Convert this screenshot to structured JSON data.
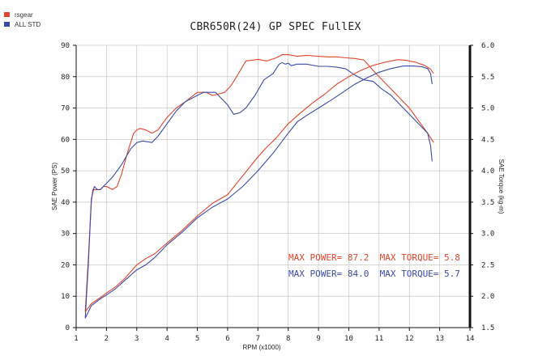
{
  "chart_data": {
    "type": "line",
    "title": "CBR650R(24) GP SPEC FullEX",
    "xlabel": "RPM (x1000)",
    "ylabel_left": "SAE Power (PS)",
    "ylabel_right": "SAE Torque (kg-m)",
    "xlim": [
      1,
      14
    ],
    "ylim_left": [
      0,
      90
    ],
    "ylim_right": [
      1.5,
      6.0
    ],
    "x_ticks": [
      "1",
      "2",
      "3",
      "4",
      "5",
      "6",
      "7",
      "8",
      "9",
      "10",
      "11",
      "12",
      "13",
      "14"
    ],
    "y_ticks_left": [
      "0",
      "10",
      "20",
      "30",
      "40",
      "50",
      "60",
      "70",
      "80",
      "90"
    ],
    "y_ticks_right": [
      "1.5",
      "2.0",
      "2.5",
      "3.0",
      "3.5",
      "4.0",
      "4.5",
      "5.0",
      "5.5",
      "6.0"
    ],
    "grid": true,
    "legend": [
      {
        "name": "rsgear",
        "color": "#e0442a"
      },
      {
        "name": "ALL STD",
        "color": "#3a4aa8"
      }
    ],
    "series": [
      {
        "name": "rsgear",
        "kind": "power",
        "axis": "left",
        "color": "#e0442a",
        "x": [
          1.3,
          1.4,
          1.5,
          1.55,
          1.6,
          1.7,
          1.8,
          1.9,
          2.0,
          2.1,
          2.2,
          2.35,
          2.5,
          2.7,
          2.9,
          3.0,
          3.1,
          3.3,
          3.5,
          3.7,
          4.0,
          4.3,
          4.6,
          5.0,
          5.3,
          5.5,
          5.7,
          5.9,
          6.1,
          6.3,
          6.6,
          7.0,
          7.3,
          7.6,
          7.8,
          8.0,
          8.3,
          8.6,
          9.0,
          9.3,
          9.6,
          9.9,
          10.2,
          10.5,
          10.8,
          11.1,
          11.4,
          11.7,
          12.0,
          12.3,
          12.6,
          12.8
        ],
        "y": [
          5,
          22,
          40,
          44,
          44,
          44,
          44,
          45,
          45,
          44.5,
          44,
          45,
          49,
          56,
          62,
          63,
          63.5,
          63,
          62,
          63,
          67,
          70,
          72,
          75,
          75,
          74,
          74.5,
          75,
          77,
          80,
          85,
          85.5,
          85,
          86,
          87,
          87,
          86.5,
          86.8,
          86.5,
          86.3,
          86.3,
          86,
          85.8,
          85.3,
          82,
          79,
          76,
          73,
          70,
          66,
          62,
          59
        ]
      },
      {
        "name": "ALL STD",
        "kind": "power",
        "axis": "left",
        "color": "#3a4aa8",
        "x": [
          1.3,
          1.4,
          1.5,
          1.6,
          1.7,
          1.8,
          1.9,
          2.0,
          2.2,
          2.5,
          2.8,
          3.0,
          3.2,
          3.5,
          3.7,
          4.0,
          4.3,
          4.6,
          5.0,
          5.2,
          5.4,
          5.6,
          5.8,
          6.0,
          6.2,
          6.4,
          6.6,
          6.9,
          7.2,
          7.5,
          7.7,
          7.8,
          7.9,
          8.0,
          8.1,
          8.3,
          8.6,
          9.0,
          9.3,
          9.6,
          9.9,
          10.2,
          10.5,
          10.8,
          11.1,
          11.4,
          11.7,
          12.0,
          12.3,
          12.6,
          12.7,
          12.75
        ],
        "y": [
          3,
          20,
          41,
          45,
          44,
          44,
          45,
          46,
          48,
          52,
          57,
          59,
          59.5,
          59,
          61,
          65,
          69,
          72,
          74,
          75,
          75,
          75,
          73,
          71,
          68,
          68.5,
          70,
          74,
          79,
          81,
          84,
          84.5,
          84,
          84.3,
          83.5,
          84,
          84,
          83.3,
          83.3,
          83,
          82.5,
          80.5,
          79,
          78.5,
          76,
          74,
          71,
          68,
          65,
          62,
          58,
          53
        ]
      },
      {
        "name": "rsgear",
        "kind": "torque",
        "axis": "right",
        "color": "#e0442a",
        "x": [
          1.3,
          1.5,
          1.8,
          2.0,
          2.3,
          2.6,
          3.0,
          3.3,
          3.6,
          4.0,
          4.5,
          5.0,
          5.5,
          6.0,
          6.5,
          7.0,
          7.3,
          7.6,
          8.0,
          8.4,
          8.8,
          9.2,
          9.6,
          10.0,
          10.4,
          10.8,
          11.2,
          11.6,
          11.9,
          12.2,
          12.5,
          12.7,
          12.8
        ],
        "y": [
          1.75,
          1.88,
          1.98,
          2.05,
          2.15,
          2.28,
          2.5,
          2.6,
          2.68,
          2.85,
          3.05,
          3.28,
          3.48,
          3.62,
          3.92,
          4.22,
          4.38,
          4.52,
          4.75,
          4.92,
          5.08,
          5.22,
          5.38,
          5.5,
          5.6,
          5.68,
          5.73,
          5.77,
          5.76,
          5.73,
          5.68,
          5.62,
          5.55
        ]
      },
      {
        "name": "ALL STD",
        "kind": "torque",
        "axis": "right",
        "color": "#3a4aa8",
        "x": [
          1.3,
          1.5,
          1.8,
          2.0,
          2.3,
          2.6,
          3.0,
          3.3,
          3.6,
          4.0,
          4.5,
          5.0,
          5.5,
          6.0,
          6.5,
          7.0,
          7.5,
          8.0,
          8.3,
          8.6,
          9.0,
          9.4,
          9.8,
          10.2,
          10.6,
          11.0,
          11.4,
          11.8,
          12.1,
          12.4,
          12.6,
          12.7,
          12.75
        ],
        "y": [
          1.65,
          1.85,
          1.96,
          2.02,
          2.12,
          2.25,
          2.42,
          2.5,
          2.62,
          2.82,
          3.02,
          3.25,
          3.42,
          3.55,
          3.75,
          4.0,
          4.28,
          4.6,
          4.78,
          4.88,
          5.0,
          5.12,
          5.25,
          5.38,
          5.48,
          5.57,
          5.63,
          5.67,
          5.67,
          5.66,
          5.63,
          5.55,
          5.38
        ]
      }
    ],
    "annotations": {
      "line1_red": "MAX POWER= 87.2  MAX TORQUE= 5.8",
      "line2_blue": "MAX POWER= 84.0  MAX TORQUE= 5.7"
    }
  }
}
